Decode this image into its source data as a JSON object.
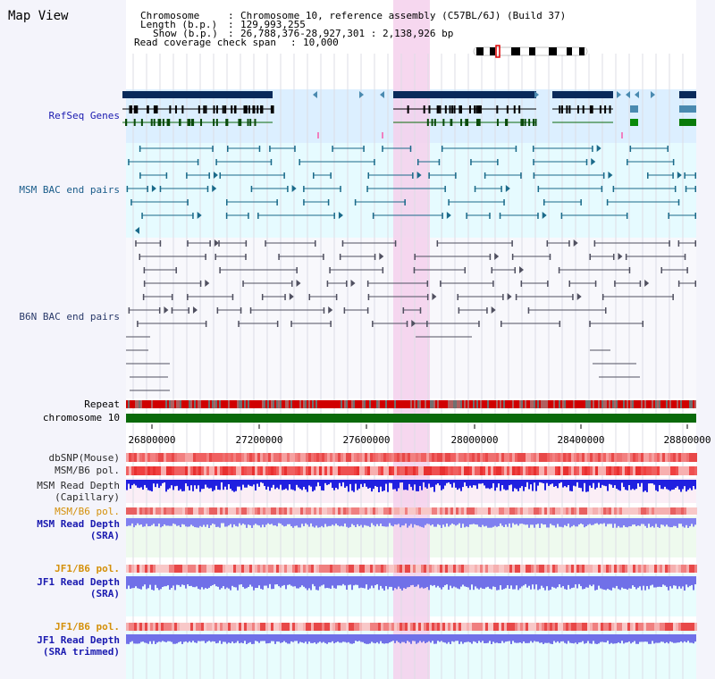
{
  "title": "Map View",
  "info": {
    "chromosome_key": "Chromosome",
    "chromosome_val": "Chromosome 10, reference assembly (C57BL/6J) (Build 37)",
    "length_key": "Length (b.p.)",
    "length_val": "129,993,255",
    "show_key": "Show (b.p.)",
    "show_val": "26,788,376-28,927,301 : 2,138,926 bp",
    "read_key": "Read coverage check span",
    "read_val": "10,000",
    "sep": ":"
  },
  "tracks": {
    "refseq": "RefSeq Genes",
    "msm_bac": "MSM BAC end pairs",
    "b6n_bac": "B6N BAC end pairs",
    "repeat": "Repeat",
    "chromosome": "chromosome 10",
    "dbsnp": "dbSNP(Mouse)",
    "msm_pol": "MSM/B6 pol.",
    "msm_depth_cap_1": "MSM Read Depth",
    "msm_depth_cap_2": "(Capillary)",
    "msm_pol_2": "MSM/B6 pol.",
    "msm_depth_sra_1": "MSM Read Depth",
    "msm_depth_sra_2": "(SRA)",
    "jf1_pol": "JF1/B6 pol.",
    "jf1_depth_1": "JF1 Read Depth",
    "jf1_depth_2": "(SRA)",
    "jf1_pol_2": "JF1/B6 pol.",
    "jf1_trim_1": "JF1 Read Depth",
    "jf1_trim_2": "(SRA trimmed)"
  },
  "axis": {
    "ticks": [
      "26800000",
      "27200000",
      "27600000",
      "28000000",
      "28400000",
      "28800000"
    ]
  },
  "colors": {
    "refseq_label": "#1a1ab0",
    "msm_label": "#1a5c8a",
    "b6n_label": "#2a3a6a",
    "pol_label": "#d4900a",
    "depth_label": "#1a1ab0",
    "gene": "#0a2a5a",
    "highlight": "#f5d0ec",
    "chromosome": "#0a6a0a"
  }
}
